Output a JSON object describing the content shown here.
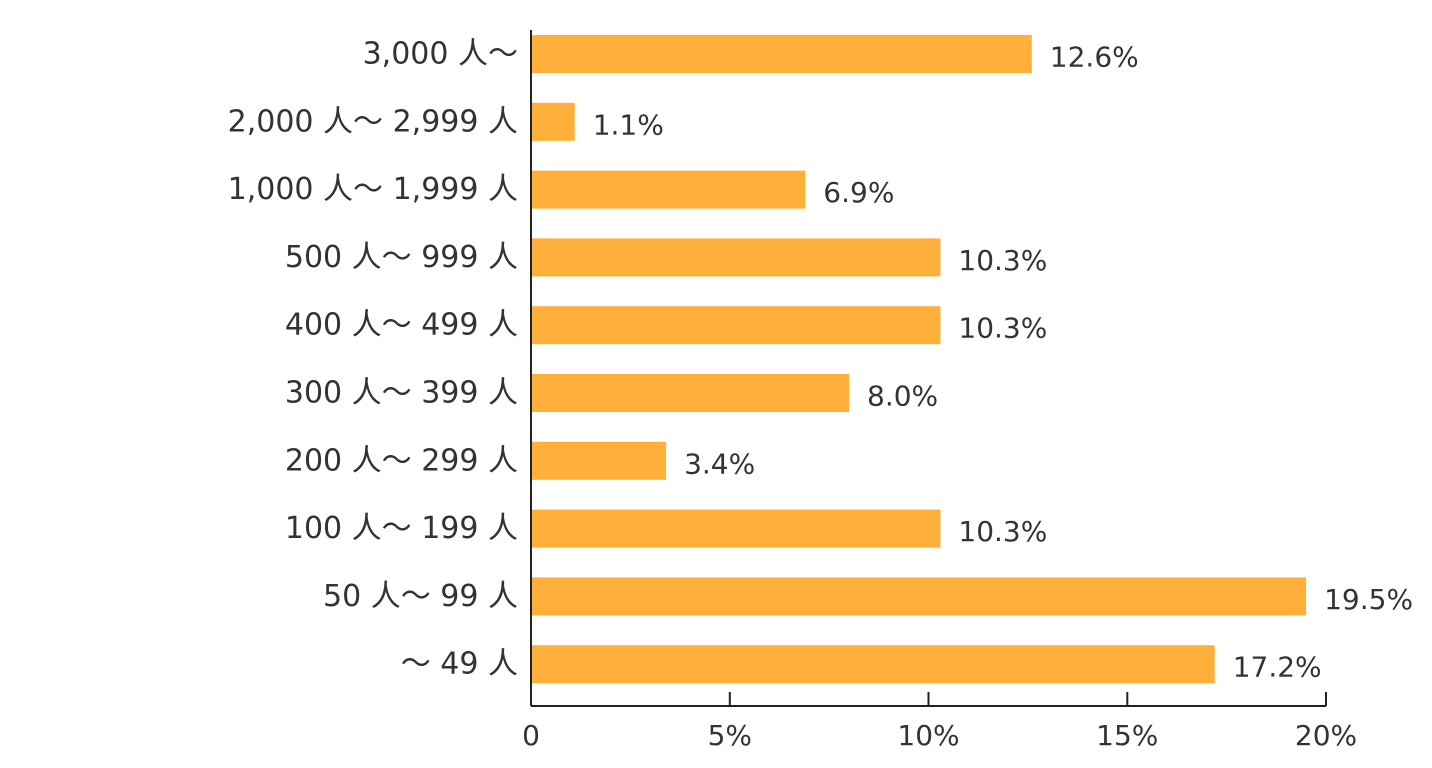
{
  "chart_data": {
    "type": "bar",
    "orientation": "horizontal",
    "title": "",
    "xlabel": "",
    "ylabel": "",
    "categories": [
      "3,000 人〜",
      "2,000 人〜 2,999 人",
      "1,000 人〜 1,999 人",
      "500 人〜 999 人",
      "400 人〜 499 人",
      "300 人〜 399 人",
      "200 人〜 299 人",
      "100 人〜 199 人",
      "50 人〜 99 人",
      "〜 49 人"
    ],
    "values": [
      12.6,
      1.1,
      6.9,
      10.3,
      10.3,
      8.0,
      3.4,
      10.3,
      19.5,
      17.2
    ],
    "value_labels": [
      "12.6%",
      "1.1%",
      "6.9%",
      "10.3%",
      "10.3%",
      "8.0%",
      "3.4%",
      "10.3%",
      "19.5%",
      "17.2%"
    ],
    "xlim": [
      0,
      20
    ],
    "x_ticks": [
      0,
      5,
      10,
      15,
      20
    ],
    "x_tick_labels": [
      "0",
      "5%",
      "10%",
      "15%",
      "20%"
    ],
    "grid": false,
    "legend": "none",
    "bar_color": "#FFAF3A",
    "axis_color": "#222222",
    "text_color": "#333333"
  }
}
